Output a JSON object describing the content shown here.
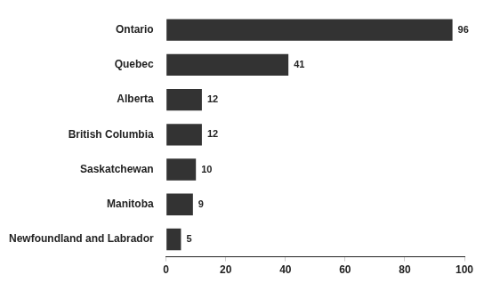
{
  "chart_data": {
    "type": "bar",
    "orientation": "horizontal",
    "categories": [
      "Ontario",
      "Quebec",
      "Alberta",
      "British Columbia",
      "Saskatchewan",
      "Manitoba",
      "Newfoundland and Labrador"
    ],
    "values": [
      96,
      41,
      12,
      12,
      10,
      9,
      5
    ],
    "color": "#333333",
    "xlim": [
      0,
      100
    ],
    "xticks": [
      0,
      20,
      40,
      60,
      80,
      100
    ],
    "grid": false,
    "data_labels": true
  }
}
